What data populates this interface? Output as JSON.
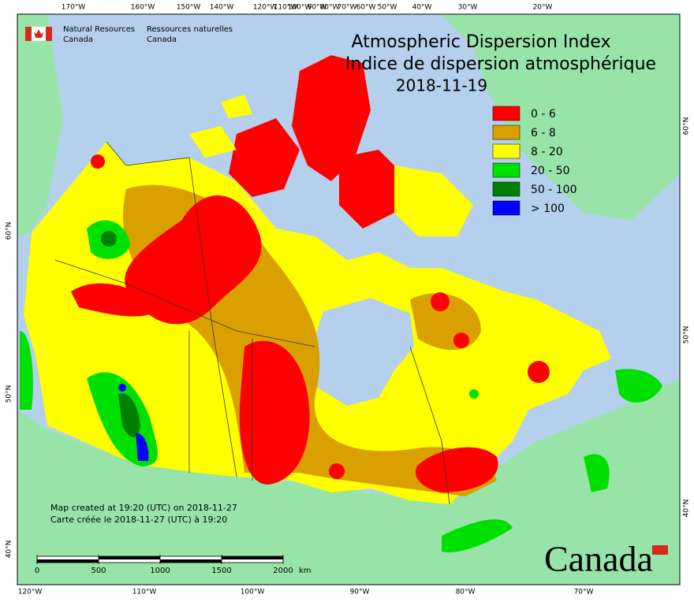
{
  "header": {
    "agency_en": "Natural Resources",
    "agency_en_country": "Canada",
    "agency_fr": "Ressources naturelles",
    "agency_fr_country": "Canada"
  },
  "title": {
    "english": "Atmospheric Dispersion Index",
    "french": "Indice de dispersion atmosphérique",
    "date": "2018-11-19"
  },
  "legend": [
    {
      "label": "0 - 6",
      "color": "#ff0000"
    },
    {
      "label": "6 - 8",
      "color": "#d9a000"
    },
    {
      "label": "8 - 20",
      "color": "#ffff00"
    },
    {
      "label": "20 - 50",
      "color": "#00e000"
    },
    {
      "label": "50 - 100",
      "color": "#008000"
    },
    {
      "label": "> 100",
      "color": "#0000ff"
    }
  ],
  "top_labels": [
    "170°W",
    "160°W",
    "150°W",
    "140°W",
    "120°W",
    "110°W",
    "100°W",
    "90°W",
    "80°W",
    "70°W",
    "60°W",
    "50°W",
    "40°W",
    "30°W",
    "20°W"
  ],
  "bottom_labels": [
    "120°W",
    "110°W",
    "100°W",
    "90°W",
    "80°W",
    "70°W"
  ],
  "left_labels": [
    "60°N",
    "50°N",
    "40°N"
  ],
  "right_labels": [
    "60°N",
    "50°N",
    "40°N"
  ],
  "scale_bar": {
    "ticks": [
      0,
      500,
      1000,
      1500,
      2000
    ],
    "unit": "km"
  },
  "credits": [
    "Map created at 19:20 (UTC) on 2018-11-27",
    "Carte créée le 2018-11-27 (UTC) à 19:20"
  ],
  "wordmark": "Canada"
}
